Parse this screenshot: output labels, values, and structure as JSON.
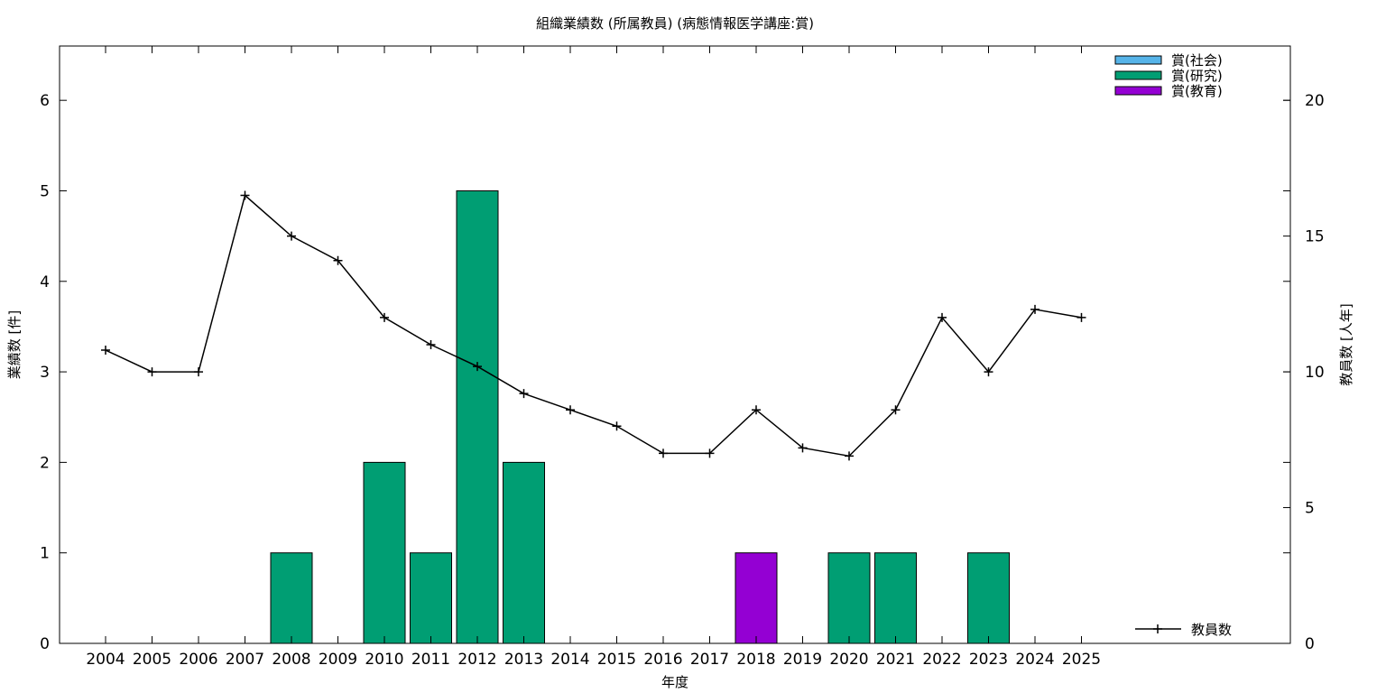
{
  "chart_data": {
    "type": "bar",
    "title": "組織業績数 (所属教員) (病態情報医学講座:賞)",
    "xlabel": "年度",
    "ylabel": "業績数 [件]",
    "y2label": "教員数 [人年]",
    "ylim": [
      0,
      6.6
    ],
    "y2lim": [
      0,
      22
    ],
    "yticks": [
      0,
      1,
      2,
      3,
      4,
      5,
      6
    ],
    "y2ticks": [
      0,
      5,
      10,
      15,
      20
    ],
    "grid": false,
    "legend_position": "top-right",
    "categories": [
      "2004",
      "2005",
      "2006",
      "2007",
      "2008",
      "2009",
      "2010",
      "2011",
      "2012",
      "2013",
      "2014",
      "2015",
      "2016",
      "2017",
      "2018",
      "2019",
      "2020",
      "2021",
      "2022",
      "2023",
      "2024",
      "2025"
    ],
    "series": [
      {
        "name": "賞(社会)",
        "kind": "bar",
        "color": "#56b4e9",
        "values": [
          0,
          0,
          0,
          0,
          0,
          0,
          0,
          0,
          0,
          0,
          0,
          0,
          0,
          0,
          0,
          0,
          0,
          0,
          0,
          0,
          0,
          0
        ]
      },
      {
        "name": "賞(研究)",
        "kind": "bar",
        "color": "#009e73",
        "values": [
          0,
          0,
          0,
          0,
          1,
          0,
          2,
          1,
          5,
          2,
          0,
          0,
          0,
          0,
          0,
          0,
          1,
          1,
          0,
          1,
          0,
          0
        ]
      },
      {
        "name": "賞(教育)",
        "kind": "bar",
        "color": "#9400d3",
        "values": [
          0,
          0,
          0,
          0,
          0,
          0,
          0,
          0,
          0,
          0,
          0,
          0,
          0,
          0,
          1,
          0,
          0,
          0,
          0,
          0,
          0,
          0
        ]
      },
      {
        "name": "教員数",
        "kind": "line",
        "axis": "y2",
        "color": "#000000",
        "values": [
          10.8,
          10,
          10,
          16.5,
          15,
          14.1,
          12,
          11,
          10.2,
          9.2,
          8.6,
          8,
          7,
          7,
          8.6,
          7.2,
          6.9,
          8.6,
          12,
          10,
          12.3,
          12
        ]
      }
    ]
  }
}
